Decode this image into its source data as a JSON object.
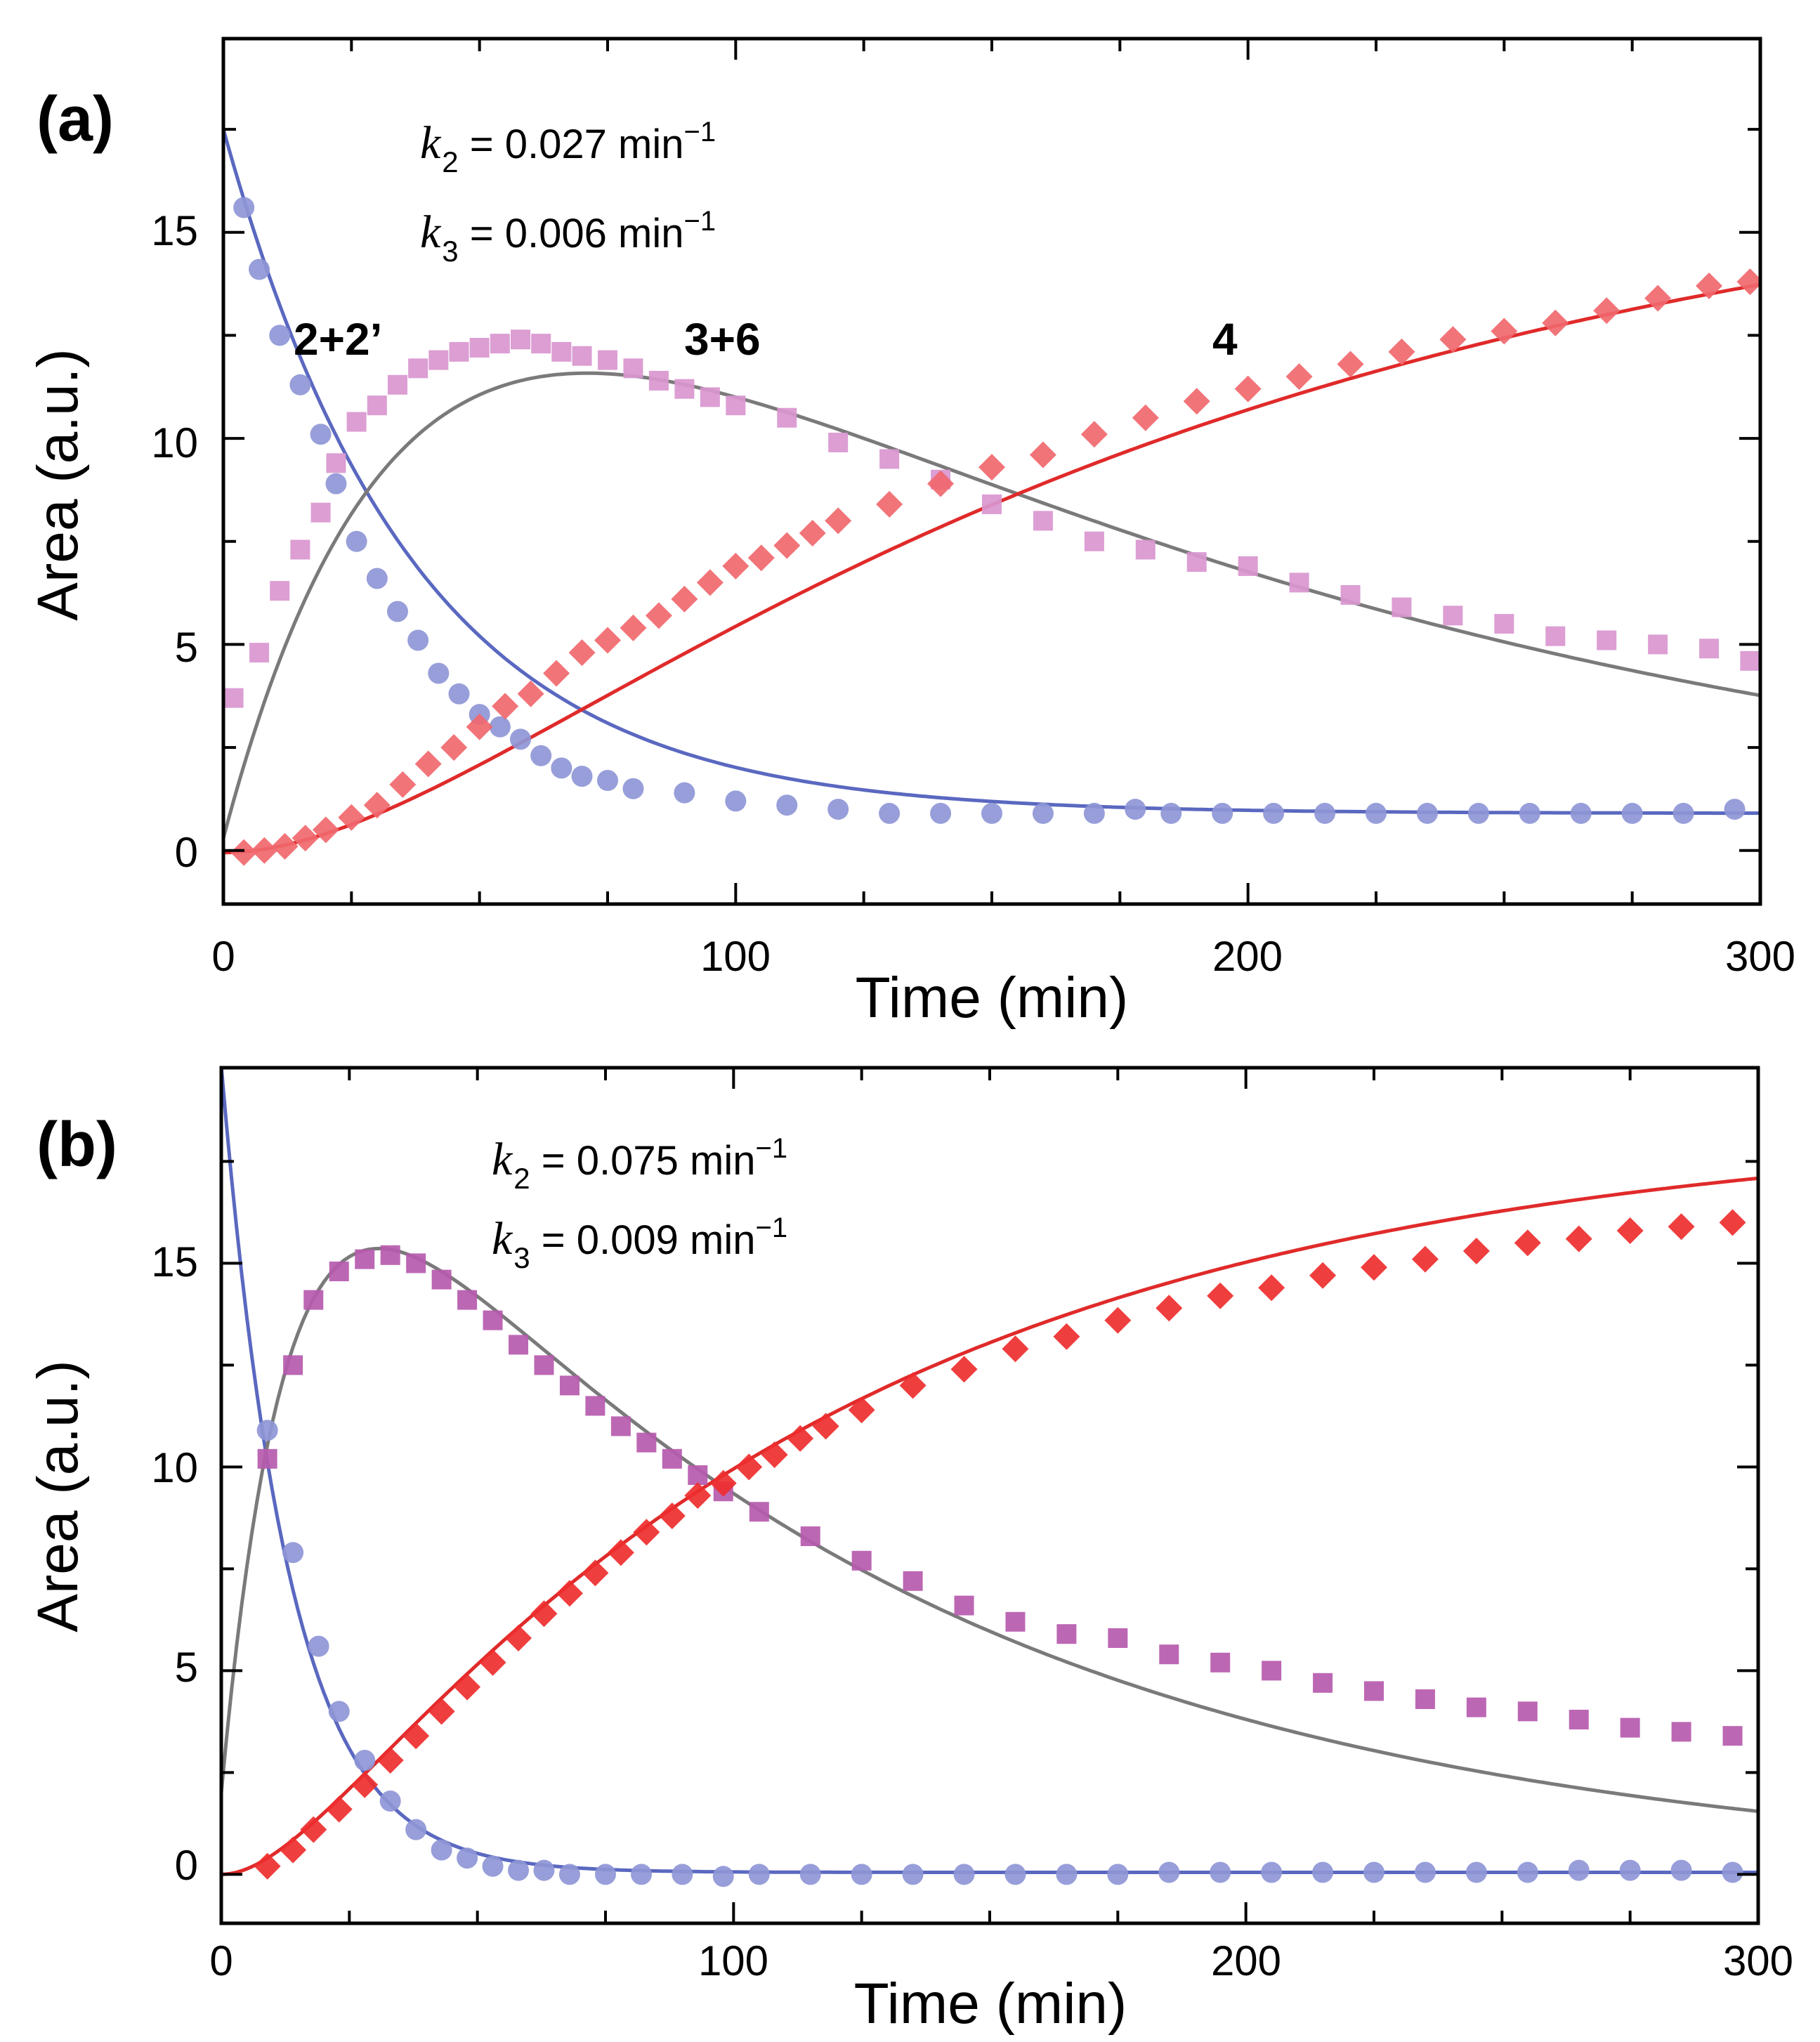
{
  "figure": {
    "panels": [
      {
        "id": "a",
        "panel_label": "(a)",
        "rate_constants": [
          {
            "symbol": "k",
            "subscript": "2",
            "value_text": " = 0.027 min",
            "superscript": "−1"
          },
          {
            "symbol": "k",
            "subscript": "3",
            "value_text": " = 0.006 min",
            "superscript": "−1"
          }
        ],
        "species_labels": [
          "2+2’",
          "3+6",
          "4"
        ]
      },
      {
        "id": "b",
        "panel_label": "(b)",
        "rate_constants": [
          {
            "symbol": "k",
            "subscript": "2",
            "value_text": " = 0.075 min",
            "superscript": "−1"
          },
          {
            "symbol": "k",
            "subscript": "3",
            "value_text": " = 0.009 min",
            "superscript": "−1"
          }
        ],
        "species_labels": []
      }
    ]
  },
  "colors": {
    "blue_markers": "#8e96d6",
    "blue_fit": "#5a68c0",
    "magenta_markers_a": "#d996cf",
    "magenta_markers_b": "#b65aae",
    "red_markers_a": "#f0686e",
    "red_markers_b": "#ee2e2e",
    "red_fit": "#e02a2a",
    "gray_fit": "#7a7a7a"
  },
  "chart_data": [
    {
      "type": "scatter",
      "panel": "a",
      "xlabel": "Time (min)",
      "ylabel": "Area (a.u.)",
      "xlim": [
        0,
        300
      ],
      "ylim": [
        -1.3,
        19.7
      ],
      "xticks": [
        0,
        100,
        200,
        300
      ],
      "yticks": [
        0,
        5,
        10,
        15
      ],
      "grid": false,
      "series": [
        {
          "name": "2+2’",
          "marker": "circle",
          "color": "#8e96d6",
          "fit_color": "#5a68c0",
          "fit": {
            "model": "reactant",
            "A0": 16.6,
            "k2": 0.027,
            "baseline": 0.9
          },
          "x": [
            4,
            7,
            11,
            15,
            19,
            22,
            26,
            30,
            34,
            38,
            42,
            46,
            50,
            54,
            58,
            62,
            66,
            70,
            75,
            80,
            90,
            100,
            110,
            120,
            130,
            140,
            150,
            160,
            170,
            178,
            185,
            195,
            205,
            215,
            225,
            235,
            245,
            255,
            265,
            275,
            285,
            295
          ],
          "y": [
            15.6,
            14.1,
            12.5,
            11.3,
            10.1,
            8.9,
            7.5,
            6.6,
            5.8,
            5.1,
            4.3,
            3.8,
            3.3,
            3.0,
            2.7,
            2.3,
            2.0,
            1.8,
            1.7,
            1.5,
            1.4,
            1.2,
            1.1,
            1.0,
            0.9,
            0.9,
            0.9,
            0.9,
            0.9,
            1.0,
            0.9,
            0.9,
            0.9,
            0.9,
            0.9,
            0.9,
            0.9,
            0.9,
            0.9,
            0.9,
            0.9,
            1.0
          ]
        },
        {
          "name": "3+6",
          "marker": "square",
          "color": "#d996cf",
          "fit_color": "#7a7a7a",
          "fit": {
            "model": "intermediate",
            "A0": 17.5,
            "k2": 0.027,
            "k3": 0.006,
            "baseline": 0,
            "offset": 0.3
          },
          "x": [
            2,
            7,
            11,
            15,
            19,
            22,
            26,
            30,
            34,
            38,
            42,
            46,
            50,
            54,
            58,
            62,
            66,
            70,
            75,
            80,
            85,
            90,
            95,
            100,
            110,
            120,
            130,
            140,
            150,
            160,
            170,
            180,
            190,
            200,
            210,
            220,
            230,
            240,
            250,
            260,
            270,
            280,
            290,
            298
          ],
          "y": [
            3.7,
            4.8,
            6.3,
            7.3,
            8.2,
            9.4,
            10.4,
            10.8,
            11.3,
            11.7,
            11.9,
            12.1,
            12.2,
            12.3,
            12.4,
            12.3,
            12.1,
            12.0,
            11.9,
            11.7,
            11.4,
            11.2,
            11.0,
            10.8,
            10.5,
            9.9,
            9.5,
            9.0,
            8.4,
            8.0,
            7.5,
            7.3,
            7.0,
            6.9,
            6.5,
            6.2,
            5.9,
            5.7,
            5.5,
            5.2,
            5.1,
            5.0,
            4.9,
            4.6
          ]
        },
        {
          "name": "4",
          "marker": "diamond",
          "color": "#f0686e",
          "fit_color": "#e02a2a",
          "fit": {
            "model": "product",
            "A0": 17.5,
            "k2": 0.027,
            "k3": 0.006,
            "baseline": -0.05
          },
          "x": [
            4,
            8,
            12,
            16,
            20,
            25,
            30,
            35,
            40,
            45,
            50,
            55,
            60,
            65,
            70,
            75,
            80,
            85,
            90,
            95,
            100,
            105,
            110,
            115,
            120,
            130,
            140,
            150,
            160,
            170,
            180,
            190,
            200,
            210,
            220,
            230,
            240,
            250,
            260,
            270,
            280,
            290,
            298
          ],
          "y": [
            -0.05,
            0.0,
            0.1,
            0.3,
            0.5,
            0.8,
            1.1,
            1.6,
            2.1,
            2.5,
            3.0,
            3.5,
            3.8,
            4.3,
            4.8,
            5.1,
            5.4,
            5.7,
            6.1,
            6.5,
            6.9,
            7.1,
            7.4,
            7.7,
            8.0,
            8.4,
            8.9,
            9.3,
            9.6,
            10.1,
            10.5,
            10.9,
            11.2,
            11.5,
            11.8,
            12.1,
            12.4,
            12.6,
            12.8,
            13.1,
            13.4,
            13.7,
            13.8
          ]
        }
      ]
    },
    {
      "type": "scatter",
      "panel": "b",
      "xlabel": "Time (min)",
      "ylabel": "Area (a.u.)",
      "xlim": [
        0,
        300
      ],
      "ylim": [
        -1.2,
        19.8
      ],
      "xticks": [
        0,
        100,
        200,
        300
      ],
      "yticks": [
        0,
        5,
        10,
        15
      ],
      "grid": false,
      "series": [
        {
          "name": "2+2’",
          "marker": "circle",
          "color": "#8e96d6",
          "fit_color": "#5a68c0",
          "fit": {
            "model": "reactant",
            "A0": 19.8,
            "k2": 0.075,
            "baseline": 0.05
          },
          "x": [
            9,
            14,
            19,
            23,
            28,
            33,
            38,
            43,
            48,
            53,
            58,
            63,
            68,
            75,
            82,
            90,
            98,
            105,
            115,
            125,
            135,
            145,
            155,
            165,
            175,
            185,
            195,
            205,
            215,
            225,
            235,
            245,
            255,
            265,
            275,
            285,
            295
          ],
          "y": [
            10.9,
            7.9,
            5.6,
            4.0,
            2.8,
            1.8,
            1.1,
            0.6,
            0.4,
            0.2,
            0.1,
            0.1,
            0.0,
            0.0,
            0.0,
            0.0,
            -0.05,
            0.0,
            0.0,
            0.0,
            0.0,
            0.0,
            0.0,
            0.0,
            0.0,
            0.05,
            0.05,
            0.05,
            0.05,
            0.05,
            0.05,
            0.05,
            0.05,
            0.1,
            0.1,
            0.1,
            0.05
          ]
        },
        {
          "name": "3+6",
          "marker": "square",
          "color": "#b65aae",
          "fit_color": "#7a7a7a",
          "fit": {
            "model": "intermediate",
            "A0": 18.5,
            "k2": 0.075,
            "k3": 0.009,
            "baseline": 0,
            "offset": 2.0
          },
          "x": [
            9,
            14,
            18,
            23,
            28,
            33,
            38,
            43,
            48,
            53,
            58,
            63,
            68,
            73,
            78,
            83,
            88,
            93,
            98,
            105,
            115,
            125,
            135,
            145,
            155,
            165,
            175,
            185,
            195,
            205,
            215,
            225,
            235,
            245,
            255,
            265,
            275,
            285,
            295
          ],
          "y": [
            10.2,
            12.5,
            14.1,
            14.8,
            15.1,
            15.2,
            15.0,
            14.6,
            14.1,
            13.6,
            13.0,
            12.5,
            12.0,
            11.5,
            11.0,
            10.6,
            10.2,
            9.8,
            9.4,
            8.9,
            8.3,
            7.7,
            7.2,
            6.6,
            6.2,
            5.9,
            5.8,
            5.4,
            5.2,
            5.0,
            4.7,
            4.5,
            4.3,
            4.1,
            4.0,
            3.8,
            3.6,
            3.5,
            3.4
          ]
        },
        {
          "name": "4",
          "marker": "diamond",
          "color": "#ee2e2e",
          "fit_color": "#e02a2a",
          "fit": {
            "model": "product",
            "A0": 18.5,
            "k2": 0.075,
            "k3": 0.009,
            "baseline": 0
          },
          "x": [
            9,
            14,
            18,
            23,
            28,
            33,
            38,
            43,
            48,
            53,
            58,
            63,
            68,
            73,
            78,
            83,
            88,
            93,
            98,
            103,
            108,
            113,
            118,
            125,
            135,
            145,
            155,
            165,
            175,
            185,
            195,
            205,
            215,
            225,
            235,
            245,
            255,
            265,
            275,
            285,
            295
          ],
          "y": [
            0.2,
            0.6,
            1.1,
            1.6,
            2.2,
            2.8,
            3.4,
            4.0,
            4.6,
            5.2,
            5.8,
            6.4,
            6.9,
            7.4,
            7.9,
            8.4,
            8.8,
            9.3,
            9.6,
            10.0,
            10.3,
            10.7,
            11.0,
            11.4,
            12.0,
            12.4,
            12.9,
            13.2,
            13.6,
            13.9,
            14.2,
            14.4,
            14.7,
            14.9,
            15.1,
            15.3,
            15.5,
            15.6,
            15.8,
            15.9,
            16.0
          ]
        }
      ]
    }
  ]
}
